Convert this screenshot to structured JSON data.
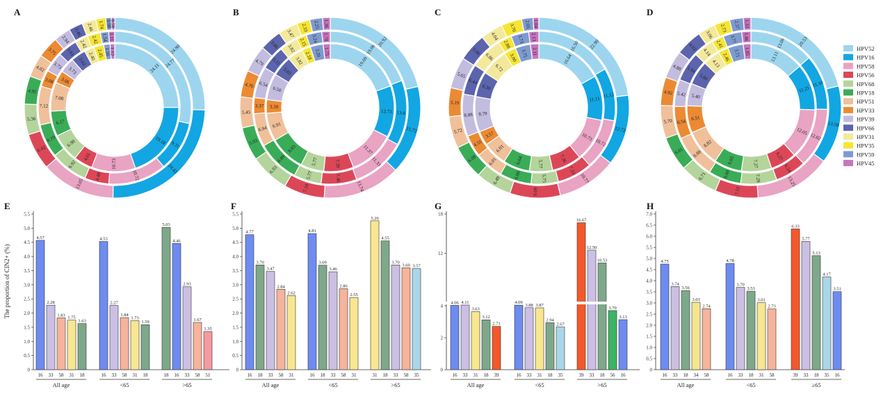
{
  "colors": {
    "HPV52": "#9dd5ef",
    "HPV16": "#12a6e2",
    "HPV58": "#e9a3c3",
    "HPV56": "#dc4758",
    "HPV68": "#b3d49a",
    "HPV18": "#3aac57",
    "HPV51": "#f0c09a",
    "HPV33": "#ec8a33",
    "HPV39": "#c2bddf",
    "HPV66": "#5b64ad",
    "HPV31": "#f4e99b",
    "HPV35": "#f6e533",
    "HPV59": "#7e9bd0",
    "HPV45": "#c774bd",
    "bar_16": "#6e8bf0",
    "bar_33": "#cbbfe3",
    "bar_58": "#f5b49b",
    "bar_31": "#f8e690",
    "bar_18": "#7ea88a",
    "bar_51": "#f49aa0",
    "bar_35": "#a9d7e8",
    "bar_39": "#f4582a",
    "bar_56": "#3cb464",
    "bar_34": "#f4e690"
  },
  "legend": {
    "labels": [
      "HPV52",
      "HPV16",
      "HPV58",
      "HPV56",
      "HPV68",
      "HPV18",
      "HPV51",
      "HPV33",
      "HPV39",
      "HPV66",
      "HPV31",
      "HPV35",
      "HPV59",
      "HPV45"
    ]
  },
  "y_axis_title": "The proportion of CIN2+ (%)",
  "chart_data": [
    {
      "panel": "A",
      "type": "pie",
      "rings": [
        {
          "values": [
            24.9,
            24.42,
            13.05,
            6.42,
            5.36,
            4.95,
            4.02,
            3.75,
            2.94,
            2.46,
            2.46,
            1.74,
            0.98,
            0.58
          ],
          "labels": [
            "24.90",
            "24.42",
            "13.05",
            "6.42",
            "5.36",
            "4.95",
            "4.02",
            "3.75",
            "2.94",
            "2.46",
            "2.46",
            "1.74",
            "0.98",
            "0.58"
          ]
        },
        {
          "values": [
            24.77,
            9.31,
            10.72,
            4.48,
            6.92,
            6.19,
            7.12,
            3.08,
            3.73,
            3.61,
            2.42,
            2.42,
            1.54,
            1.11
          ],
          "labels": [
            "24.77",
            "9.31",
            "10.72",
            "4.48",
            "6.92",
            "6.19",
            "7.12",
            "3.08",
            "3.73",
            "3.61",
            "2.42",
            "2.42",
            "1.54",
            "1.11"
          ]
        },
        {
          "values": [
            24.11,
            19.18,
            10.73,
            4.61,
            6.9,
            6.17,
            7.08,
            3.06,
            3.73,
            3.62,
            2.4,
            2.45,
            1.56,
            1.12
          ],
          "labels": [
            "24.11",
            "19.18",
            "10.73",
            "4.61",
            "6.90",
            "6.17",
            "7.08",
            "3.06",
            "3.73",
            "3.62",
            "2.40",
            "2.45",
            "1.56",
            "1.12"
          ]
        }
      ]
    },
    {
      "panel": "B",
      "type": "pie",
      "rings": [
        {
          "values": [
            20.92,
            15.72,
            13.74,
            7.18,
            6.93,
            5.93,
            5.45,
            4.7,
            4.79,
            3.86,
            3.47,
            2.33,
            2.25,
            1.36
          ],
          "labels": [
            "20.92",
            "15.72",
            "13.74",
            "7.18",
            "6.93",
            "5.93",
            "5.45",
            "4.70",
            "4.79",
            "3.86",
            "3.47",
            "2.33",
            "2.25",
            "1.36"
          ]
        },
        {
          "values": [
            19.06,
            13.6,
            11.33,
            7.46,
            5.77,
            8.89,
            6.94,
            3.37,
            6.54,
            5.11,
            3.82,
            2.15,
            3.24,
            1.78
          ],
          "labels": [
            "19.06",
            "13.6",
            "11.33",
            "7.46",
            "5.77",
            "8.89",
            "6.94",
            "3.37",
            "6.54",
            "5.11",
            "3.82",
            "2.15",
            "3.24",
            "1.78"
          ]
        },
        {
          "values": [
            19.09,
            12.73,
            11.37,
            7.39,
            5.77,
            8.83,
            6.91,
            3.39,
            6.5,
            5.03,
            3.82,
            2.18,
            3.2,
            1.75
          ],
          "labels": [
            "19.09",
            "12.73",
            "11.37",
            "7.39",
            "5.77",
            "8.83",
            "6.91",
            "3.39",
            "6.50",
            "5.03",
            "3.82",
            "2.18",
            "3.20",
            "1.75"
          ]
        }
      ]
    },
    {
      "panel": "C",
      "type": "pie",
      "rings": [
        {
          "values": [
            22.9,
            12.72,
            10.77,
            9.09,
            6.49,
            6.08,
            5.72,
            5.19,
            5.65,
            5.06,
            4.04,
            3.7,
            2.05,
            1.04
          ],
          "labels": [
            "22.90",
            "12.72",
            "10.77",
            "9.09",
            "6.49",
            "6.08",
            "5.72",
            "5.19",
            "5.65",
            "5.06",
            "4.04",
            "3.70",
            "2.05",
            "1.04"
          ]
        },
        {
          "values": [
            16.5,
            11.12,
            10.72,
            7.33,
            5.75,
            6.66,
            6.01,
            4.55,
            8.88,
            6.44,
            6.86,
            2.88,
            3.73,
            2.13
          ],
          "labels": [
            "16.50",
            "11.12",
            "10.72",
            "7.33",
            "5.75",
            "6.66",
            "6.01",
            "4.55",
            "8.88",
            "6.44",
            "6.86",
            "2.88",
            "3.73",
            "2.13"
          ]
        },
        {
          "values": [
            16.64,
            11.11,
            10.73,
            7.36,
            5.77,
            6.64,
            6.01,
            3.57,
            8.79,
            6.3,
            6.72,
            3.0,
            3.75,
            2.11
          ],
          "labels": [
            "16.64",
            "11.11",
            "10.73",
            "7.36",
            "5.77",
            "6.64",
            "6.01",
            "3.57",
            "8.79",
            "6.30",
            "6.72",
            "3.00",
            "3.75",
            "2.11"
          ]
        }
      ]
    },
    {
      "panel": "D",
      "type": "pie",
      "rings": [
        {
          "values": [
            20.53,
            13.58,
            13.25,
            7.51,
            6.71,
            6.01,
            5.7,
            4.92,
            4.88,
            4.62,
            3.06,
            2.73,
            2.37,
            1.33
          ],
          "labels": [
            "20.53",
            "13.58",
            "13.25",
            "7.51",
            "6.71",
            "6.01",
            "5.70",
            "4.92",
            "4.88",
            "4.62",
            "3.06",
            "2.73",
            "2.37",
            "1.33"
          ]
        },
        {
          "values": [
            13.06,
            11.1,
            12.02,
            6.24,
            7.28,
            6.6,
            8.88,
            6.54,
            5.42,
            5.94,
            4.14,
            2.41,
            3.77,
            1.86
          ],
          "labels": [
            "13.06",
            "11.10",
            "12.02",
            "6.24",
            "7.28",
            "6.60",
            "8.88",
            "6.54",
            "5.42",
            "5.94",
            "4.14",
            "2.41",
            "3.77",
            "1.86"
          ]
        },
        {
          "values": [
            13.11,
            11.21,
            12.05,
            6.27,
            7.27,
            6.65,
            8.82,
            6.51,
            5.4,
            5.8,
            4.13,
            2.46,
            3.71,
            1.85
          ],
          "labels": [
            "13.11",
            "11.21",
            "12.05",
            "6.27",
            "7.27",
            "6.65",
            "8.82",
            "6.51",
            "5.40",
            "5.80",
            "4.13",
            "2.46",
            "3.71",
            "1.85"
          ]
        }
      ]
    },
    {
      "panel": "E",
      "type": "bar",
      "ylim": [
        0,
        5.5
      ],
      "yticks": [
        "0",
        "0.5",
        "1.0",
        "1.5",
        "2.0",
        "2.5",
        "3.0",
        "3.5",
        "4.0",
        "4.5",
        "5.0",
        "5.5"
      ],
      "groups": [
        {
          "name": "All age",
          "bars": [
            {
              "cat": "16",
              "value": 4.57,
              "label": "4.57"
            },
            {
              "cat": "33",
              "value": 2.28,
              "label": "2.28"
            },
            {
              "cat": "58",
              "value": 1.83,
              "label": "1.83"
            },
            {
              "cat": "31",
              "value": 1.75,
              "label": "1.75"
            },
            {
              "cat": "18",
              "value": 1.63,
              "label": "1.63"
            }
          ]
        },
        {
          "name": "<65",
          "bars": [
            {
              "cat": "16",
              "value": 4.53,
              "label": "4.53"
            },
            {
              "cat": "33",
              "value": 2.27,
              "label": "2.27"
            },
            {
              "cat": "58",
              "value": 1.84,
              "label": "1.84"
            },
            {
              "cat": "31",
              "value": 1.73,
              "label": "1.73"
            },
            {
              "cat": "18",
              "value": 1.59,
              "label": "1.59"
            }
          ]
        },
        {
          "name": ">65",
          "bars": [
            {
              "cat": "18",
              "value": 5.03,
              "label": "5.03"
            },
            {
              "cat": "16",
              "value": 4.46,
              "label": "4.46"
            },
            {
              "cat": "33",
              "value": 2.93,
              "label": "2.93"
            },
            {
              "cat": "58",
              "value": 1.67,
              "label": "1.67"
            },
            {
              "cat": "51",
              "value": 1.35,
              "label": "1.35"
            }
          ]
        }
      ]
    },
    {
      "panel": "F",
      "type": "bar",
      "ylim": [
        0,
        5.5
      ],
      "yticks": [
        "0",
        "0.5",
        "1.0",
        "1.5",
        "2.0",
        "2.5",
        "3.0",
        "3.5",
        "4.0",
        "4.5",
        "5.0",
        "5.5"
      ],
      "groups": [
        {
          "name": "All age",
          "bars": [
            {
              "cat": "16",
              "value": 4.77,
              "label": "4.77"
            },
            {
              "cat": "18",
              "value": 3.7,
              "label": "3.70"
            },
            {
              "cat": "33",
              "value": 3.47,
              "label": "3.47"
            },
            {
              "cat": "58",
              "value": 2.84,
              "label": "2.84"
            },
            {
              "cat": "31",
              "value": 2.62,
              "label": "2.62"
            }
          ]
        },
        {
          "name": "<65",
          "bars": [
            {
              "cat": "16",
              "value": 4.81,
              "label": "4.81"
            },
            {
              "cat": "18",
              "value": 3.69,
              "label": "3.69"
            },
            {
              "cat": "33",
              "value": 3.46,
              "label": "3.46"
            },
            {
              "cat": "58",
              "value": 2.86,
              "label": "2.86"
            },
            {
              "cat": "31",
              "value": 2.55,
              "label": "2.55"
            }
          ]
        },
        {
          "name": ">65",
          "bars": [
            {
              "cat": "31",
              "value": 5.26,
              "label": "5.26"
            },
            {
              "cat": "18",
              "value": 4.55,
              "label": "4.55"
            },
            {
              "cat": "33",
              "value": 3.7,
              "label": "3.70"
            },
            {
              "cat": "58",
              "value": 3.6,
              "label": "3.60"
            },
            {
              "cat": "35",
              "value": 3.57,
              "label": "3.57"
            }
          ]
        }
      ]
    },
    {
      "panel": "G",
      "type": "bar",
      "ylim": [
        0,
        18
      ],
      "yticks": [
        "0",
        "2",
        "4",
        "12",
        "18"
      ],
      "axis_break": true,
      "groups": [
        {
          "name": "All age",
          "bars": [
            {
              "cat": "16",
              "value": 4.06,
              "label": "4.06"
            },
            {
              "cat": "33",
              "value": 4.11,
              "label": "4.11"
            },
            {
              "cat": "31",
              "value": 3.63,
              "label": "3.63"
            },
            {
              "cat": "18",
              "value": 3.12,
              "label": "3.12"
            },
            {
              "cat": "39",
              "value": 2.71,
              "label": "2.71"
            }
          ]
        },
        {
          "name": "<65",
          "bars": [
            {
              "cat": "16",
              "value": 4.09,
              "label": "4.09"
            },
            {
              "cat": "33",
              "value": 3.88,
              "label": "3.88"
            },
            {
              "cat": "31",
              "value": 3.87,
              "label": "3.87"
            },
            {
              "cat": "18",
              "value": 2.94,
              "label": "2.94"
            },
            {
              "cat": "35",
              "value": 2.67,
              "label": "2.67"
            }
          ]
        },
        {
          "name": ">65",
          "bars": [
            {
              "cat": "39",
              "value": 16.67,
              "label": "16.67"
            },
            {
              "cat": "33",
              "value": 12.5,
              "label": "12.50"
            },
            {
              "cat": "18",
              "value": 10.53,
              "label": "10.53"
            },
            {
              "cat": "56",
              "value": 3.7,
              "label": "3.70"
            },
            {
              "cat": "16",
              "value": 3.13,
              "label": "3.13"
            }
          ]
        }
      ]
    },
    {
      "panel": "H",
      "type": "bar",
      "ylim": [
        0,
        7.0
      ],
      "yticks": [
        "0",
        "0.5",
        "1.0",
        "1.5",
        "2.0",
        "2.5",
        "3.0",
        "3.5",
        "4.0",
        "4.5",
        "5.0",
        "5.5",
        "6.0",
        "6.5",
        "7.0"
      ],
      "groups": [
        {
          "name": "All age",
          "bars": [
            {
              "cat": "16",
              "value": 4.75,
              "label": "4.75"
            },
            {
              "cat": "33",
              "value": 3.74,
              "label": "3.74"
            },
            {
              "cat": "18",
              "value": 3.56,
              "label": "3.56"
            },
            {
              "cat": "34",
              "value": 3.03,
              "label": "3.03"
            },
            {
              "cat": "58",
              "value": 2.74,
              "label": "2.74"
            }
          ]
        },
        {
          "name": "<65",
          "bars": [
            {
              "cat": "16",
              "value": 4.78,
              "label": "4.78"
            },
            {
              "cat": "33",
              "value": 3.7,
              "label": "3.70"
            },
            {
              "cat": "18",
              "value": 3.53,
              "label": "3.53"
            },
            {
              "cat": "31",
              "value": 3.01,
              "label": "3.01"
            },
            {
              "cat": "58",
              "value": 2.73,
              "label": "2.73"
            }
          ]
        },
        {
          "name": "≥65",
          "bars": [
            {
              "cat": "39",
              "value": 6.33,
              "label": "6.33"
            },
            {
              "cat": "33",
              "value": 5.77,
              "label": "5.77"
            },
            {
              "cat": "18",
              "value": 5.13,
              "label": "5.13"
            },
            {
              "cat": "35",
              "value": 4.17,
              "label": "4.17"
            },
            {
              "cat": "16",
              "value": 3.51,
              "label": "3.51"
            }
          ]
        }
      ]
    }
  ]
}
